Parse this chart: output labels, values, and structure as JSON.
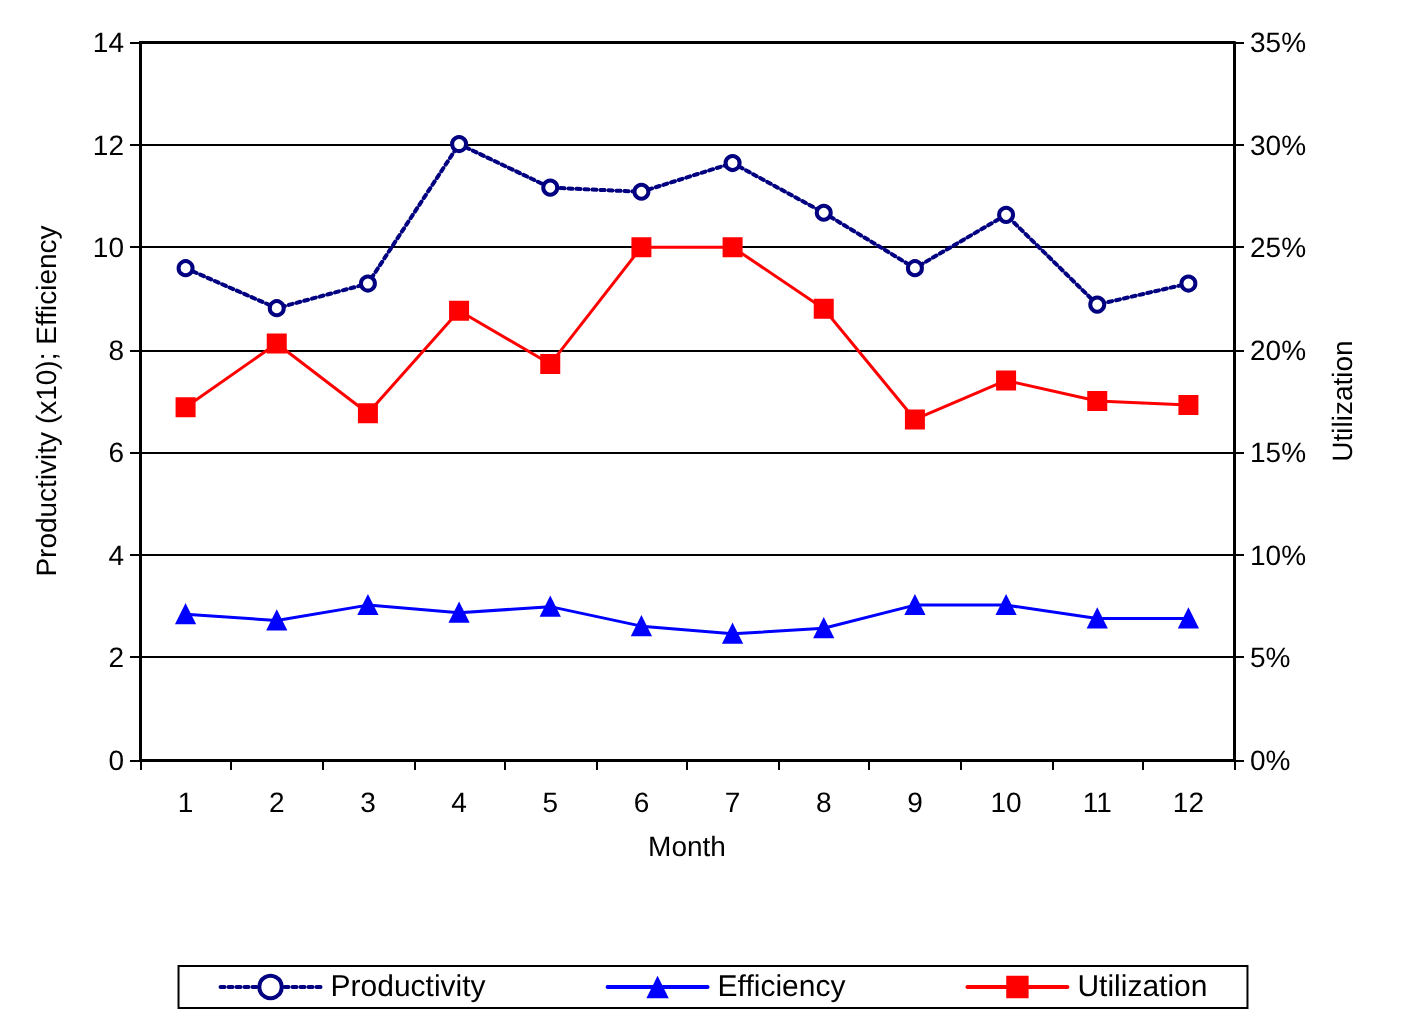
{
  "chart_data": {
    "type": "line",
    "xlabel": "Month",
    "ylabel": "Productivity (x10); Efficiency",
    "y2label": "Utilization",
    "categories": [
      "1",
      "2",
      "3",
      "4",
      "5",
      "6",
      "7",
      "8",
      "9",
      "10",
      "11",
      "12"
    ],
    "series": [
      {
        "name": "Productivity",
        "color": "#000080",
        "marker": "circle",
        "line_style": "dotted",
        "values": [
          9.59,
          8.81,
          9.29,
          12.01,
          11.16,
          11.08,
          11.64,
          10.67,
          9.59,
          10.63,
          8.88,
          9.29
        ]
      },
      {
        "name": "Efficiency",
        "color": "#0000ff",
        "marker": "triangle",
        "line_style": "solid",
        "values": [
          2.84,
          2.72,
          3.02,
          2.87,
          2.99,
          2.61,
          2.46,
          2.57,
          3.02,
          3.02,
          2.76,
          2.76
        ]
      },
      {
        "name": "Utilization",
        "color": "#ff0000",
        "marker": "square",
        "line_style": "solid",
        "axis": "y2",
        "values": [
          17.2,
          20.3,
          16.9,
          21.9,
          19.3,
          25.0,
          25.0,
          22.0,
          16.6,
          18.5,
          17.5,
          17.3
        ]
      }
    ],
    "ylim": [
      0,
      14
    ],
    "yticks": [
      0,
      2,
      4,
      6,
      8,
      10,
      12,
      14
    ],
    "y2lim": [
      0,
      35
    ],
    "y2ticks": [
      {
        "value": 0,
        "label": "0%"
      },
      {
        "value": 5,
        "label": "5%"
      },
      {
        "value": 10,
        "label": "10%"
      },
      {
        "value": 15,
        "label": "15%"
      },
      {
        "value": 20,
        "label": "20%"
      },
      {
        "value": 25,
        "label": "25%"
      },
      {
        "value": 30,
        "label": "30%"
      },
      {
        "value": 35,
        "label": "35%"
      }
    ],
    "grid": "y",
    "legend": "bottom"
  }
}
